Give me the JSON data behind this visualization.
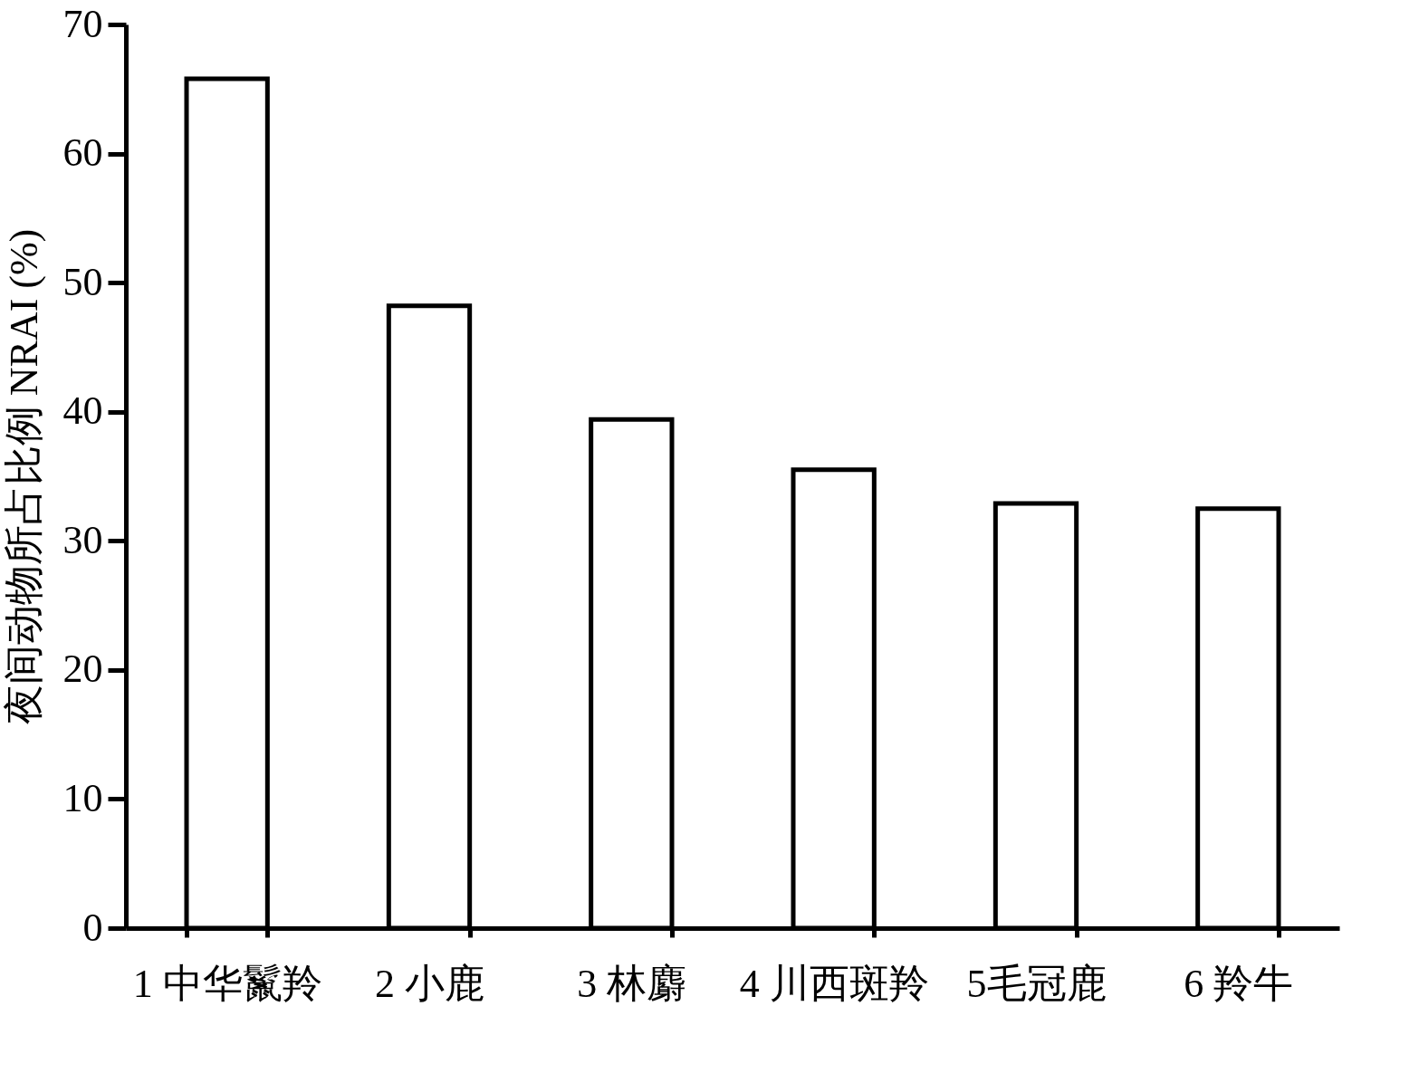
{
  "chart_data": {
    "type": "bar",
    "ylabel": "夜间动物所占比例 NRAI (%)",
    "categories": [
      "1 中华鬣羚",
      "2 小鹿",
      "3 林麝",
      "4 川西斑羚",
      "5毛冠鹿",
      "6 羚牛"
    ],
    "values": [
      65.8,
      48.2,
      39.4,
      35.5,
      32.9,
      32.5
    ],
    "color": "#ffffff",
    "ylim": [
      0,
      70
    ],
    "yticks": [
      0,
      10,
      20,
      30,
      40,
      50,
      60,
      70
    ]
  }
}
